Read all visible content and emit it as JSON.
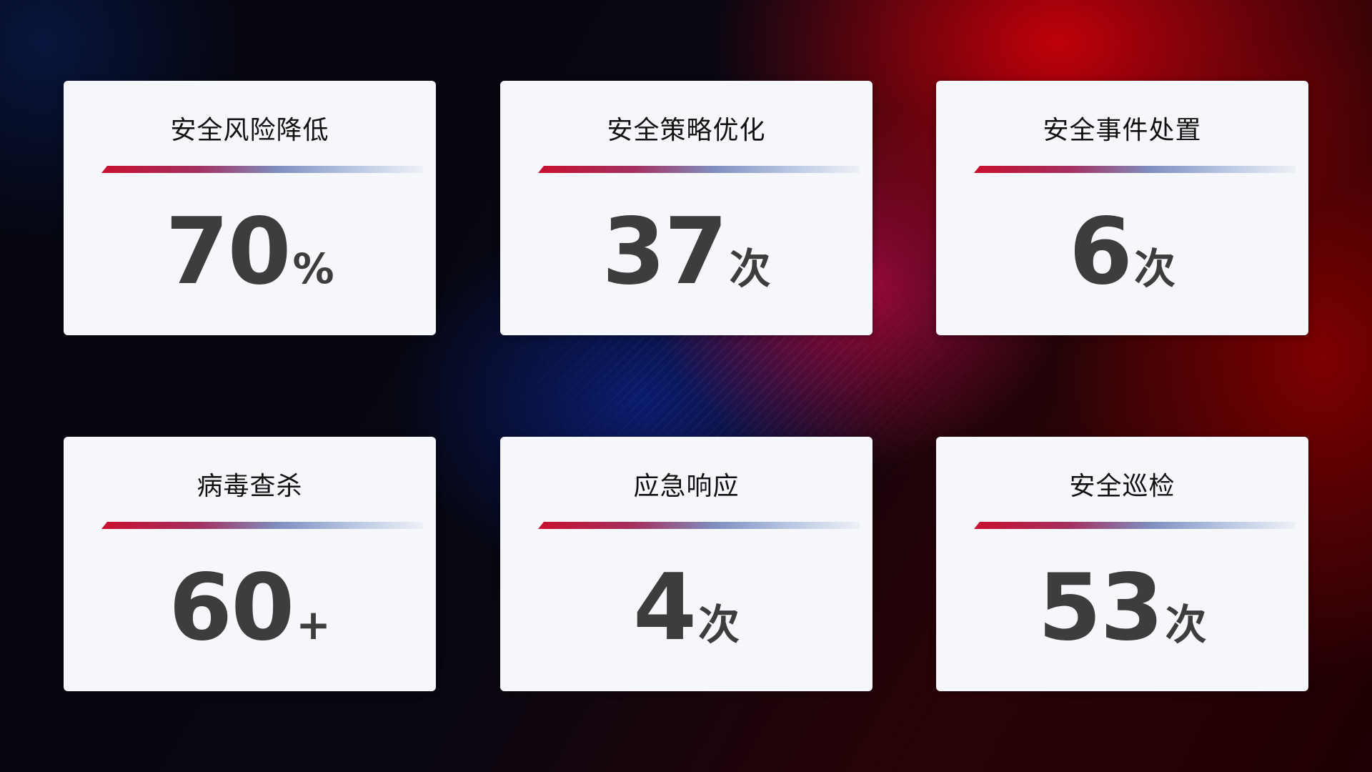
{
  "cards": [
    {
      "title": "安全风险降低",
      "value": "70",
      "unit": "%"
    },
    {
      "title": "安全策略优化",
      "value": "37",
      "unit": "次"
    },
    {
      "title": "安全事件处置",
      "value": "6",
      "unit": "次"
    },
    {
      "title": "病毒查杀",
      "value": "60",
      "unit": "+"
    },
    {
      "title": "应急响应",
      "value": "4",
      "unit": "次"
    },
    {
      "title": "安全巡检",
      "value": "53",
      "unit": "次"
    }
  ],
  "colors": {
    "accent_red": "#c8102e",
    "accent_blue": "#7f8fc0",
    "card_bg": "#f6f7fb",
    "value_text": "#3d3d3d"
  }
}
